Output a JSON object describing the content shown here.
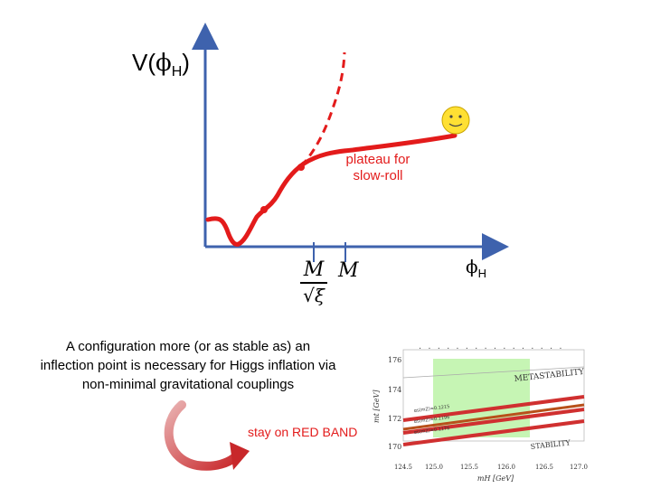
{
  "potential_plot": {
    "y_axis_label": "V(",
    "y_axis_sub": "H",
    "y_axis_close": ")",
    "x_axis_label": "ϕ",
    "x_axis_sub": "H",
    "plateau_label_line1": "plateau for",
    "plateau_label_line2": "slow-roll",
    "tick1_numerator": "M",
    "tick1_denominator": "√ξ",
    "tick2_label": "M"
  },
  "description": {
    "line1": "A configuration more (or as stable as) an",
    "line2": "inflection point is necessary for Higgs inflation via",
    "line3": "non-minimal gravitational couplings"
  },
  "arrow_label": "stay on RED BAND",
  "inset_chart": {
    "region_upper": "METASTABILITY",
    "region_lower": "STABILITY",
    "ylabel": "mt [GeV]",
    "xlabel": "mH [GeV]",
    "yticks": [
      "176",
      "174",
      "172",
      "170"
    ],
    "xticks": [
      "124.5",
      "125.0",
      "125.5",
      "126.0",
      "126.5",
      "127.0"
    ],
    "band_labels": [
      "αs(mZ)=0.1215",
      "αs(mZ)=0.1196",
      "αs(mZ)=0.1176"
    ]
  },
  "colors": {
    "red": "#e31b1b",
    "axis_blue": "#3e62ad",
    "band_green": "#c6f5b4",
    "band_red": "#d03030",
    "band_orange": "#b8501a"
  }
}
